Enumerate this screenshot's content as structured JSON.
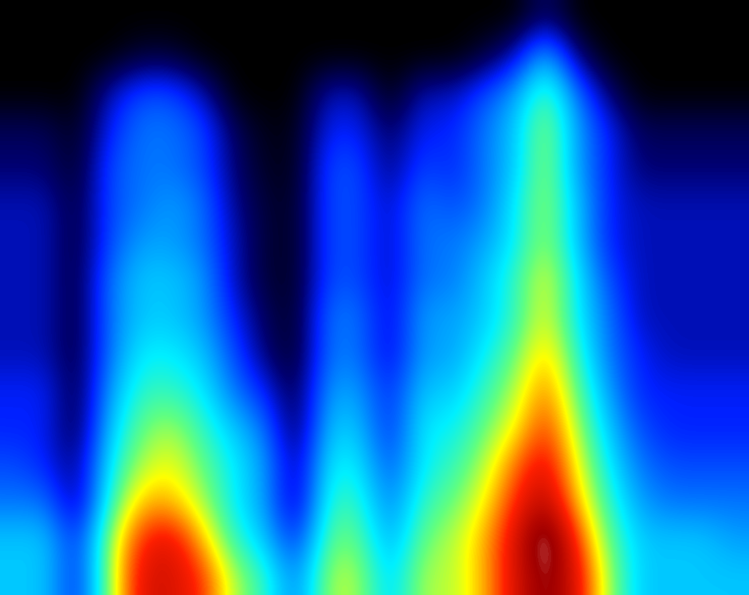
{
  "chart_data": {
    "type": "heatmap",
    "tick_labels": false,
    "zlim": [
      0,
      10
    ],
    "cells": [
      [
        4,
        4,
        2,
        6,
        8.5,
        8.5,
        8,
        6,
        5,
        3,
        6,
        6,
        4,
        6,
        6,
        7,
        8.5,
        9.5,
        8.5,
        6,
        4,
        4,
        4,
        4
      ],
      [
        4,
        4,
        2,
        6,
        8,
        8.5,
        7,
        5,
        4,
        2,
        5.5,
        5.5,
        3.5,
        5.5,
        6,
        7,
        8.5,
        10,
        8,
        5.5,
        4,
        4,
        4,
        3.5
      ],
      [
        3,
        3,
        1,
        5,
        7,
        7,
        6,
        4.5,
        3.5,
        1,
        5,
        5,
        3,
        5,
        5.5,
        6.5,
        8,
        9,
        7,
        5,
        3.5,
        3,
        3,
        3
      ],
      [
        2.5,
        2,
        1,
        4.5,
        6,
        6.5,
        5.5,
        4.5,
        3.5,
        1,
        4.5,
        4.5,
        2.5,
        4.5,
        5,
        6,
        7.5,
        8.5,
        6.5,
        4.5,
        3,
        2.5,
        2.5,
        2.5
      ],
      [
        2,
        2,
        0.5,
        4,
        5.5,
        6,
        5,
        4,
        3,
        0.5,
        4,
        4,
        2,
        4.5,
        4.5,
        5.5,
        6.5,
        8,
        6,
        4,
        2.5,
        2,
        2,
        2
      ],
      [
        2,
        2,
        0.5,
        3.5,
        5,
        5,
        4.5,
        3,
        2,
        0.5,
        3.5,
        3.5,
        2,
        4,
        4,
        5,
        6,
        7.5,
        5.5,
        3.5,
        2,
        2,
        2,
        2
      ],
      [
        1.5,
        1.5,
        0.5,
        3,
        4.5,
        4.5,
        4,
        2.5,
        1,
        0.3,
        3,
        3,
        1.5,
        3.5,
        3.5,
        4.5,
        5.5,
        7,
        5,
        3,
        2,
        1.5,
        1.5,
        1.5
      ],
      [
        1.5,
        1.5,
        0.5,
        3,
        4,
        4,
        3.5,
        2,
        0.8,
        0.3,
        3,
        3,
        1.5,
        3.5,
        3.5,
        4,
        5,
        6.5,
        4.5,
        3,
        1.5,
        1.5,
        1.5,
        1.5
      ],
      [
        1.5,
        1.5,
        0.5,
        3,
        4,
        4,
        3.5,
        1.5,
        0.5,
        0.3,
        2.5,
        2.5,
        1.5,
        3,
        3,
        4,
        5,
        6.5,
        4.5,
        2.5,
        1.5,
        1.5,
        1.5,
        1.5
      ],
      [
        1.5,
        1.5,
        0.5,
        2.5,
        3.5,
        3.5,
        3,
        1.5,
        0.5,
        0.3,
        2.5,
        2.5,
        1.5,
        3,
        3,
        3.5,
        4.5,
        6,
        4,
        2,
        1.5,
        1.5,
        1.5,
        1.5
      ],
      [
        1.5,
        1.5,
        0.5,
        2.5,
        3,
        3.5,
        3,
        1.2,
        0.5,
        0.3,
        2.5,
        2.5,
        1.5,
        3,
        2.5,
        3,
        4.5,
        6,
        4,
        2,
        1.5,
        1.5,
        1.5,
        1.5
      ],
      [
        1,
        1,
        0.3,
        2.5,
        3,
        3,
        2.5,
        1,
        0.3,
        0.2,
        2.5,
        2.5,
        1,
        2.5,
        2,
        3,
        4,
        6,
        3.5,
        2,
        1,
        1,
        1,
        1
      ],
      [
        0.8,
        0.8,
        0.2,
        2,
        3,
        3,
        2.5,
        0.8,
        0.2,
        0.2,
        2,
        2,
        0.8,
        2,
        2,
        3,
        4,
        6,
        3.5,
        2,
        0.8,
        0.8,
        0.8,
        0.8
      ],
      [
        0,
        0,
        0,
        1.5,
        2.5,
        2.5,
        1.5,
        0,
        0,
        0,
        1.5,
        1.5,
        0,
        1.5,
        1.5,
        2.5,
        3.5,
        5.5,
        3,
        1,
        0,
        0,
        0,
        0
      ],
      [
        0,
        0,
        0,
        0,
        0.5,
        0.5,
        0,
        0,
        0,
        0,
        0,
        0,
        0,
        0,
        0,
        0.5,
        1.5,
        4,
        1,
        0,
        0,
        0,
        0,
        0
      ],
      [
        0,
        0,
        0,
        0,
        0,
        0,
        0,
        0,
        0,
        0,
        0,
        0,
        0,
        0,
        0,
        0,
        0,
        1,
        0,
        0,
        0,
        0,
        0,
        0
      ]
    ]
  }
}
